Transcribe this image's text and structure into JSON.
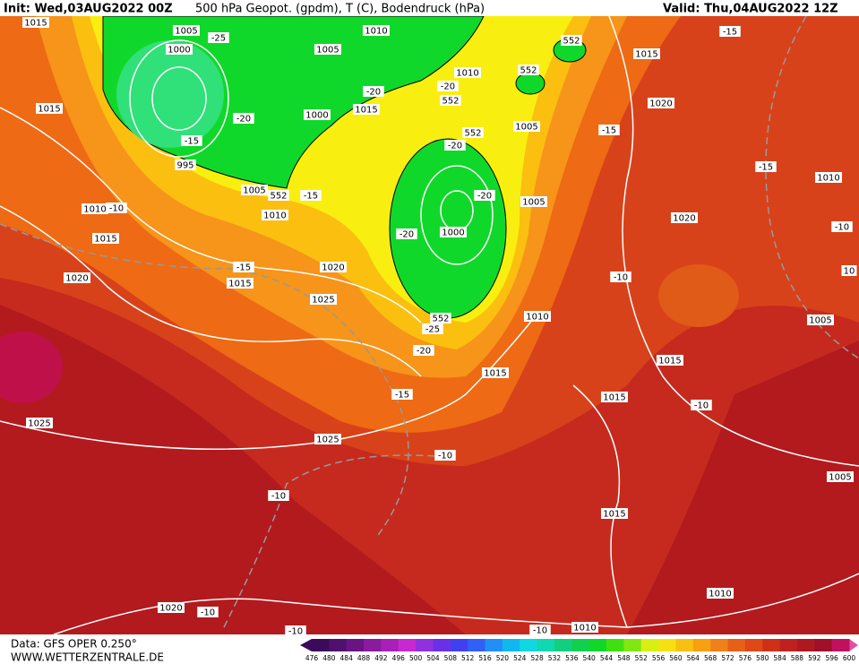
{
  "header": {
    "init": "Init: Wed,03AUG2022 00Z",
    "title": "500 hPa Geopot. (gpdm), T (C), Bodendruck (hPa)",
    "valid": "Valid: Thu,04AUG2022 12Z"
  },
  "map": {
    "labels": [
      "1015",
      "1005",
      "1010",
      "-25",
      "552",
      "-15",
      "1000",
      "1005",
      "552",
      "1010",
      "1015",
      "1015",
      "-20",
      "-20",
      "552",
      "1020",
      "1015",
      "-20",
      "1000",
      "1005",
      "-15",
      "-15",
      "552",
      "-20",
      "995",
      "-15",
      "1010",
      "1005",
      "552",
      "-15",
      "-20",
      "1005",
      "-10",
      "1010",
      "1010",
      "1020",
      "-10",
      "1015",
      "-20",
      "1000",
      "-15",
      "1020",
      "1020",
      "-10",
      "10",
      "1015",
      "1025",
      "552",
      "1010",
      "-25",
      "1005",
      "-20",
      "1015",
      "1015",
      "-15",
      "1015",
      "-10",
      "1025",
      "1025",
      "-10",
      "1005",
      "-10",
      "1015",
      "1010",
      "1020",
      "-10",
      "1010",
      "-10",
      "-10"
    ]
  },
  "footer": {
    "data": "Data: GFS OPER 0.250°",
    "site": "WWW.WETTERZENTRALE.DE"
  },
  "colorbar": {
    "values": [
      476,
      480,
      484,
      488,
      492,
      496,
      500,
      504,
      508,
      512,
      516,
      520,
      524,
      528,
      532,
      536,
      540,
      544,
      548,
      552,
      556,
      560,
      564,
      568,
      572,
      576,
      580,
      584,
      588,
      592,
      596,
      600
    ],
    "colors": [
      "#3c0a5a",
      "#50106e",
      "#6a1484",
      "#8a1a9e",
      "#a820b8",
      "#c828d0",
      "#9030e0",
      "#6a30e8",
      "#4040f0",
      "#3060f8",
      "#2090f8",
      "#10b8f0",
      "#10d8e0",
      "#10d8b0",
      "#10d080",
      "#10d050",
      "#10d828",
      "#40e010",
      "#80e810",
      "#d8f010",
      "#f8e010",
      "#f8c010",
      "#f8a010",
      "#f08018",
      "#e86018",
      "#e04818",
      "#d03018",
      "#c02020",
      "#b01820",
      "#a01028",
      "#c01060"
    ]
  }
}
